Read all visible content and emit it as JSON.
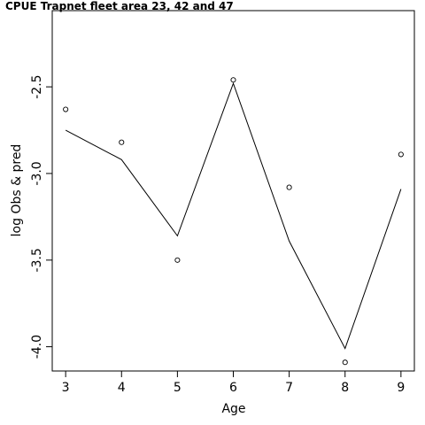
{
  "chart_data": {
    "type": "line",
    "title_line1": "CPUE Trapnet fleet area 23, 42 and 47",
    "title_line2": "",
    "xlabel": "Age",
    "ylabel": "log Obs & pred",
    "x": [
      3,
      4,
      5,
      6,
      7,
      8,
      9
    ],
    "xlim": [
      2.76,
      9.24
    ],
    "ylim": [
      -4.14,
      -2.06
    ],
    "x_ticks": [
      "3",
      "4",
      "5",
      "6",
      "7",
      "8",
      "9"
    ],
    "y_ticks": [
      {
        "value": -4.0,
        "label": "-4.0"
      },
      {
        "value": -3.5,
        "label": "-3.5"
      },
      {
        "value": -3.0,
        "label": "-3.0"
      },
      {
        "value": -2.5,
        "label": "-2.5"
      }
    ],
    "series": [
      {
        "kind": "points",
        "marker": "open-circle",
        "values": [
          -2.63,
          -2.82,
          -3.5,
          -2.46,
          -3.08,
          -4.09,
          -2.89
        ]
      },
      {
        "kind": "line",
        "values": [
          -2.75,
          -2.92,
          -3.36,
          -2.48,
          -3.39,
          -4.01,
          -3.09
        ]
      }
    ],
    "grid": false,
    "colors": {
      "line": "#000000",
      "points": "#000000",
      "frame": "#000000"
    }
  }
}
